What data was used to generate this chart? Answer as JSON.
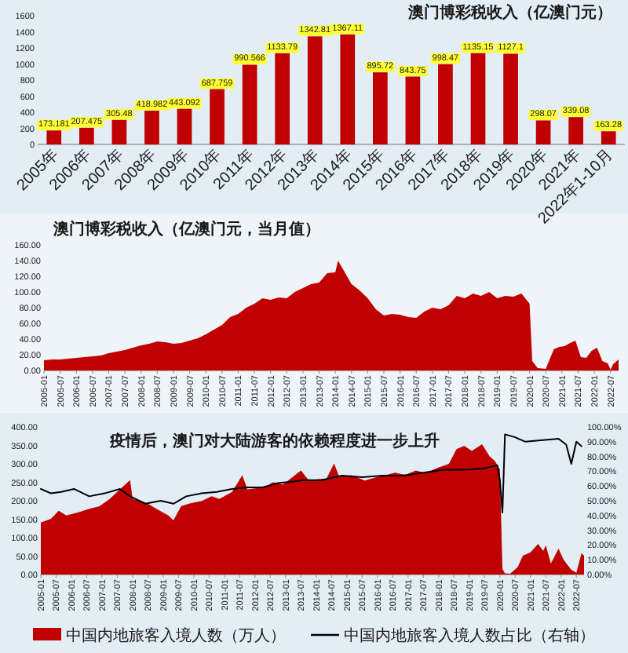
{
  "chart_data": [
    {
      "type": "bar",
      "title": "澳门博彩税收入（亿澳门元）",
      "categories": [
        "2005年",
        "2006年",
        "2007年",
        "2008年",
        "2009年",
        "2010年",
        "2011年",
        "2012年",
        "2013年",
        "2014年",
        "2015年",
        "2016年",
        "2017年",
        "2018年",
        "2019年",
        "2020年",
        "2021年",
        "2022年1-10月"
      ],
      "values": [
        173.181,
        207.475,
        305.48,
        418.982,
        443.092,
        687.759,
        990.566,
        1133.79,
        1342.81,
        1367.11,
        895.72,
        843.75,
        998.47,
        1135.15,
        1127.1,
        298.07,
        339.08,
        163.28
      ],
      "color": "#c00000",
      "ylim": [
        0,
        1600
      ],
      "yticks": [
        0,
        200,
        400,
        600,
        800,
        1000,
        1200,
        1400,
        1600
      ],
      "data_labels": true
    },
    {
      "type": "area",
      "title": "澳门博彩税收入（亿澳门元，当月值）",
      "x": [
        "2005-01",
        "2005-04",
        "2005-07",
        "2005-10",
        "2006-01",
        "2006-04",
        "2006-07",
        "2006-10",
        "2007-01",
        "2007-04",
        "2007-07",
        "2007-10",
        "2008-01",
        "2008-04",
        "2008-07",
        "2008-10",
        "2009-01",
        "2009-04",
        "2009-07",
        "2009-10",
        "2010-01",
        "2010-04",
        "2010-07",
        "2010-10",
        "2011-01",
        "2011-04",
        "2011-07",
        "2011-10",
        "2012-01",
        "2012-04",
        "2012-07",
        "2012-10",
        "2013-01",
        "2013-04",
        "2013-07",
        "2013-10",
        "2014-01",
        "2014-02",
        "2014-04",
        "2014-07",
        "2014-10",
        "2015-01",
        "2015-04",
        "2015-07",
        "2015-10",
        "2016-01",
        "2016-04",
        "2016-07",
        "2016-10",
        "2017-01",
        "2017-04",
        "2017-07",
        "2017-10",
        "2018-01",
        "2018-04",
        "2018-07",
        "2018-10",
        "2019-01",
        "2019-04",
        "2019-07",
        "2019-10",
        "2020-01",
        "2020-02",
        "2020-04",
        "2020-07",
        "2020-10",
        "2020-12",
        "2021-02",
        "2021-04",
        "2021-06",
        "2021-08",
        "2021-10",
        "2021-12",
        "2022-02",
        "2022-04",
        "2022-06",
        "2022-07",
        "2022-08",
        "2022-10"
      ],
      "values": [
        13,
        14,
        14,
        15,
        16,
        17,
        18,
        19,
        22,
        24,
        26,
        29,
        32,
        34,
        37,
        36,
        34,
        35,
        38,
        41,
        46,
        52,
        58,
        68,
        72,
        80,
        85,
        92,
        90,
        93,
        92,
        100,
        105,
        110,
        112,
        124,
        125,
        140,
        128,
        110,
        102,
        92,
        78,
        70,
        72,
        71,
        68,
        67,
        75,
        80,
        78,
        83,
        95,
        92,
        98,
        95,
        100,
        92,
        95,
        94,
        98,
        85,
        12,
        3,
        2,
        27,
        30,
        31,
        35,
        38,
        17,
        16,
        25,
        29,
        12,
        9,
        1,
        8,
        14
      ],
      "color": "#c00000",
      "xlim": [
        "2005-01",
        "2022-10"
      ],
      "xticks": [
        "2005-01",
        "2005-07",
        "2006-01",
        "2006-07",
        "2007-01",
        "2007-07",
        "2008-01",
        "2008-07",
        "2009-01",
        "2009-07",
        "2010-01",
        "2010-07",
        "2011-01",
        "2011-07",
        "2012-01",
        "2012-07",
        "2013-01",
        "2013-07",
        "2014-01",
        "2014-07",
        "2015-01",
        "2015-07",
        "2016-01",
        "2016-07",
        "2017-01",
        "2017-07",
        "2018-01",
        "2018-07",
        "2019-01",
        "2019-07",
        "2020-01",
        "2020-07",
        "2021-01",
        "2021-07",
        "2022-01",
        "2022-07"
      ],
      "ylim": [
        0,
        160
      ],
      "yticks": [
        {
          "value": 0,
          "label": "0.00"
        },
        {
          "value": 20,
          "label": "20.00"
        },
        {
          "value": 40,
          "label": "40.00"
        },
        {
          "value": 60,
          "label": "60.00"
        },
        {
          "value": 80,
          "label": "80.00"
        },
        {
          "value": 100,
          "label": "100.00"
        },
        {
          "value": 120,
          "label": "120.00"
        },
        {
          "value": 140,
          "label": "140.00"
        },
        {
          "value": 160,
          "label": "160.00"
        }
      ]
    },
    {
      "type": "area",
      "title": "疫情后，澳门对大陆游客的依赖程度进一步上升",
      "series": [
        {
          "name": "中国内地旅客入境人数（万人）",
          "color": "#c00000",
          "x": [
            "2005-01",
            "2005-05",
            "2005-08",
            "2005-11",
            "2006-04",
            "2006-08",
            "2006-12",
            "2007-04",
            "2007-08",
            "2007-12",
            "2008-01",
            "2008-04",
            "2008-07",
            "2008-10",
            "2009-03",
            "2009-05",
            "2009-08",
            "2009-11",
            "2010-04",
            "2010-08",
            "2010-11",
            "2011-04",
            "2011-08",
            "2011-10",
            "2012-05",
            "2012-08",
            "2012-12",
            "2013-07",
            "2013-10",
            "2014-05",
            "2014-08",
            "2014-10",
            "2015-03",
            "2015-08",
            "2015-12",
            "2016-08",
            "2016-12",
            "2017-04",
            "2017-08",
            "2017-12",
            "2018-05",
            "2018-08",
            "2018-11",
            "2019-02",
            "2019-06",
            "2019-09",
            "2019-11",
            "2020-01",
            "2020-02",
            "2020-03",
            "2020-05",
            "2020-08",
            "2020-10",
            "2021-01",
            "2021-04",
            "2021-06",
            "2021-07",
            "2021-09",
            "2021-12",
            "2022-02",
            "2022-05",
            "2022-07",
            "2022-09",
            "2022-10"
          ],
          "values": [
            141,
            151,
            173,
            160,
            169,
            178,
            185,
            205,
            231,
            256,
            205,
            199,
            192,
            179,
            160,
            147,
            185,
            192,
            199,
            212,
            205,
            224,
            269,
            231,
            237,
            250,
            244,
            282,
            256,
            260,
            301,
            265,
            269,
            255,
            263,
            276,
            270,
            282,
            275,
            288,
            300,
            340,
            349,
            335,
            353,
            320,
            308,
            285,
            15,
            3,
            2,
            20,
            51,
            60,
            83,
            64,
            79,
            30,
            70,
            40,
            13,
            5,
            58,
            51
          ]
        },
        {
          "name": "中国内地旅客入境人数占比（右轴）",
          "type": "line",
          "axis": "y2",
          "color": "#000000",
          "x": [
            "2005-01",
            "2005-05",
            "2005-09",
            "2006-02",
            "2006-08",
            "2007-02",
            "2007-08",
            "2007-12",
            "2008-06",
            "2008-12",
            "2009-05",
            "2009-10",
            "2010-04",
            "2010-10",
            "2011-04",
            "2011-10",
            "2012-04",
            "2012-10",
            "2013-04",
            "2013-08",
            "2014-03",
            "2014-11",
            "2015-07",
            "2016-03",
            "2016-11",
            "2017-07",
            "2018-03",
            "2018-11",
            "2019-07",
            "2019-12",
            "2020-01",
            "2020-02",
            "2020-03",
            "2020-07",
            "2020-11",
            "2021-05",
            "2021-12",
            "2022-03",
            "2022-05",
            "2022-07",
            "2022-09"
          ],
          "values": [
            58,
            55,
            56,
            58,
            53,
            55,
            58,
            53,
            48,
            50,
            48,
            53,
            55,
            56,
            58,
            59,
            59,
            62,
            63,
            64,
            64,
            67,
            66,
            67,
            67,
            69,
            71,
            71,
            72,
            74,
            64,
            42,
            95,
            93,
            90,
            91,
            92,
            88,
            75,
            90,
            87
          ]
        }
      ],
      "xlim": [
        "2005-01",
        "2022-10"
      ],
      "xticks": [
        "2005-01",
        "2005-07",
        "2006-01",
        "2006-07",
        "2007-01",
        "2007-07",
        "2008-01",
        "2008-07",
        "2009-01",
        "2009-07",
        "2010-01",
        "2010-07",
        "2011-01",
        "2011-07",
        "2012-01",
        "2012-07",
        "2013-01",
        "2013-07",
        "2014-01",
        "2014-07",
        "2015-01",
        "2015-07",
        "2016-01",
        "2016-07",
        "2017-01",
        "2017-07",
        "2018-01",
        "2018-07",
        "2019-01",
        "2019-07",
        "2020-01",
        "2020-07",
        "2021-01",
        "2021-07",
        "2022-01",
        "2022-07"
      ],
      "ylim": [
        0,
        400
      ],
      "yticks": [
        {
          "value": 0,
          "label": "0.00"
        },
        {
          "value": 50,
          "label": "50.00"
        },
        {
          "value": 100,
          "label": "100.00"
        },
        {
          "value": 150,
          "label": "150.00"
        },
        {
          "value": 200,
          "label": "200.00"
        },
        {
          "value": 250,
          "label": "250.00"
        },
        {
          "value": 300,
          "label": "300.00"
        },
        {
          "value": 350,
          "label": "350.00"
        },
        {
          "value": 400,
          "label": "400.00"
        }
      ],
      "y2lim": [
        0,
        100
      ],
      "y2ticks": [
        {
          "value": 0,
          "label": "0.00%"
        },
        {
          "value": 10,
          "label": "10.00%"
        },
        {
          "value": 20,
          "label": "20.00%"
        },
        {
          "value": 30,
          "label": "30.00%"
        },
        {
          "value": 40,
          "label": "40.00%"
        },
        {
          "value": 50,
          "label": "50.00%"
        },
        {
          "value": 60,
          "label": "60.00%"
        },
        {
          "value": 70,
          "label": "70.00%"
        },
        {
          "value": 80,
          "label": "80.00%"
        },
        {
          "value": 90,
          "label": "90.00%"
        },
        {
          "value": 100,
          "label": "100.00%"
        }
      ],
      "legend": "bottom"
    }
  ]
}
